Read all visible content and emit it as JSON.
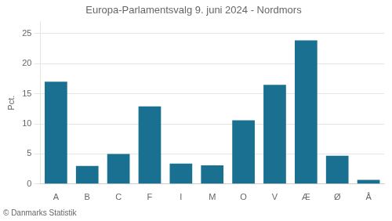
{
  "chart_data": {
    "type": "bar",
    "title": "Europa-Parlamentsvalg 9. juni 2024 - Nordmors",
    "ylabel": "Pct.",
    "footer": "© Danmarks Statistik",
    "categories": [
      "A",
      "B",
      "C",
      "F",
      "I",
      "M",
      "O",
      "V",
      "Æ",
      "Ø",
      "Å"
    ],
    "values": [
      17.0,
      3.0,
      5.0,
      12.9,
      3.4,
      3.1,
      10.6,
      16.5,
      23.9,
      4.7,
      0.7
    ],
    "color": "#1a7090",
    "ylim": [
      0,
      27
    ],
    "yticks": [
      0,
      5,
      10,
      15,
      20,
      25
    ],
    "grid": true
  }
}
